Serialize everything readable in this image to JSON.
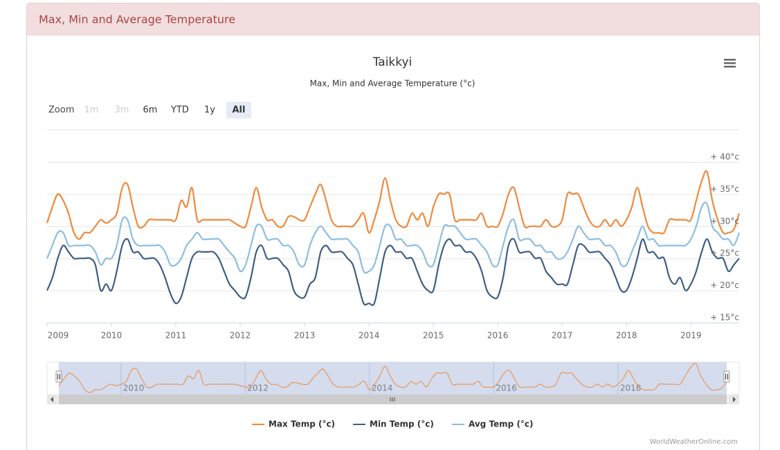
{
  "header": {
    "title": "Max, Min and Average Temperature"
  },
  "chart_data": {
    "type": "line",
    "title": "Taikkyi",
    "subtitle": "Max, Min and Average Temperature (°c)",
    "credits": "WorldWeatherOnline.com",
    "zoom": {
      "label": "Zoom",
      "buttons": [
        "1m",
        "3m",
        "6m",
        "YTD",
        "1y",
        "All"
      ],
      "disabled": [
        true,
        true,
        false,
        false,
        false,
        false
      ],
      "selected": 5
    },
    "xlim": [
      2009,
      2019.75
    ],
    "xticks": [
      2009,
      2010,
      2011,
      2012,
      2013,
      2014,
      2015,
      2016,
      2017,
      2018,
      2019
    ],
    "navigator_xticks": [
      2010,
      2012,
      2014,
      2016,
      2018
    ],
    "ylim": [
      15,
      40
    ],
    "yticks": [
      {
        "value": 15,
        "label": "+ 15°c"
      },
      {
        "value": 20,
        "label": "+ 20°c"
      },
      {
        "value": 25,
        "label": "+ 25°c"
      },
      {
        "value": 30,
        "label": "+ 30°c"
      },
      {
        "value": 35,
        "label": "+ 35°c"
      },
      {
        "value": 40,
        "label": "+ 40°c"
      }
    ],
    "grid": true,
    "legend": "bottom",
    "x": [
      2009,
      2009.083,
      2009.167,
      2009.25,
      2009.333,
      2009.417,
      2009.5,
      2009.583,
      2009.667,
      2009.75,
      2009.833,
      2009.917,
      2010,
      2010.083,
      2010.167,
      2010.25,
      2010.333,
      2010.417,
      2010.5,
      2010.583,
      2010.667,
      2010.75,
      2010.833,
      2010.917,
      2011,
      2011.083,
      2011.167,
      2011.25,
      2011.333,
      2011.417,
      2011.5,
      2011.583,
      2011.667,
      2011.75,
      2011.833,
      2011.917,
      2012,
      2012.083,
      2012.167,
      2012.25,
      2012.333,
      2012.417,
      2012.5,
      2012.583,
      2012.667,
      2012.75,
      2012.833,
      2012.917,
      2013,
      2013.083,
      2013.167,
      2013.25,
      2013.333,
      2013.417,
      2013.5,
      2013.583,
      2013.667,
      2013.75,
      2013.833,
      2013.917,
      2014,
      2014.083,
      2014.167,
      2014.25,
      2014.333,
      2014.417,
      2014.5,
      2014.583,
      2014.667,
      2014.75,
      2014.833,
      2014.917,
      2015,
      2015.083,
      2015.167,
      2015.25,
      2015.333,
      2015.417,
      2015.5,
      2015.583,
      2015.667,
      2015.75,
      2015.833,
      2015.917,
      2016,
      2016.083,
      2016.167,
      2016.25,
      2016.333,
      2016.417,
      2016.5,
      2016.583,
      2016.667,
      2016.75,
      2016.833,
      2016.917,
      2017,
      2017.083,
      2017.167,
      2017.25,
      2017.333,
      2017.417,
      2017.5,
      2017.583,
      2017.667,
      2017.75,
      2017.833,
      2017.917,
      2018,
      2018.083,
      2018.167,
      2018.25,
      2018.333,
      2018.417,
      2018.5,
      2018.583,
      2018.667,
      2018.75,
      2018.833,
      2018.917,
      2019,
      2019.083,
      2019.167,
      2019.25,
      2019.333,
      2019.417,
      2019.5,
      2019.583,
      2019.667,
      2019.75
    ],
    "series": [
      {
        "name": "Max Temp (°c)",
        "color": "#f0883a",
        "navigator": true,
        "values": [
          30.5,
          33,
          35,
          34,
          32,
          29,
          28,
          29,
          29,
          30,
          31,
          30.5,
          31,
          32,
          36,
          36.5,
          33,
          30,
          30,
          31,
          31,
          31,
          31,
          31,
          31,
          34,
          33,
          36,
          31,
          31,
          31,
          31,
          31,
          31,
          31,
          30.5,
          30,
          30,
          33,
          36,
          33,
          31,
          31,
          30,
          30,
          31.5,
          31.5,
          31,
          31,
          33,
          35,
          36.5,
          34,
          31,
          30,
          30,
          30,
          30,
          31,
          32,
          29,
          31,
          34,
          37.5,
          34,
          31,
          30,
          30,
          32,
          31,
          32,
          30,
          33,
          35,
          35,
          35,
          31,
          31,
          31,
          31,
          31,
          32,
          30,
          30,
          30,
          32,
          35,
          36,
          33,
          30,
          30,
          30,
          30,
          31,
          30,
          30,
          31,
          35,
          35,
          35,
          33,
          31,
          30,
          30,
          31,
          30,
          31,
          30,
          31,
          33,
          36,
          33,
          30,
          29,
          29,
          29,
          31,
          31,
          31,
          31,
          31,
          34,
          37,
          38.5,
          34,
          31,
          29,
          29,
          29.5,
          32
        ]
      },
      {
        "name": "Min Temp (°c)",
        "color": "#3d5d84",
        "values": [
          20,
          22,
          25,
          27,
          26,
          25,
          25,
          25,
          25,
          24,
          20,
          21,
          20,
          23,
          27,
          28,
          26,
          26,
          25,
          25,
          25,
          24,
          22,
          19.5,
          18,
          19,
          22,
          25,
          26,
          26,
          26,
          26,
          25,
          23,
          21,
          20,
          19,
          19,
          22,
          26,
          27,
          25,
          25,
          25,
          24,
          23,
          20,
          19,
          19,
          21,
          22,
          26,
          27,
          26,
          26,
          26,
          25,
          24,
          21,
          18,
          18,
          18,
          22,
          26,
          27,
          26,
          26,
          25,
          25,
          23,
          21,
          20,
          20,
          24,
          27,
          28,
          27,
          27,
          26,
          26,
          25,
          23,
          20,
          19,
          19,
          22,
          27,
          28,
          26,
          26,
          26,
          25,
          25,
          23,
          22,
          21,
          21,
          21,
          24,
          27,
          27,
          26,
          26,
          26,
          25,
          24,
          22,
          20,
          20,
          22,
          25,
          28,
          26,
          26,
          25,
          25,
          22,
          21,
          22,
          20,
          21,
          23,
          26,
          28,
          26,
          25,
          25,
          23,
          24,
          25
        ]
      },
      {
        "name": "Avg Temp (°c)",
        "color": "#8cbde0",
        "values": [
          25,
          27,
          29,
          29,
          27,
          27,
          27,
          27,
          27,
          26,
          24,
          25,
          25,
          27,
          31,
          31,
          28,
          27,
          27,
          27,
          27,
          27,
          26,
          24,
          24,
          25,
          27,
          28,
          29,
          28,
          28,
          28,
          28,
          27,
          26,
          25,
          23,
          24,
          27,
          30,
          30,
          28,
          28,
          28,
          27,
          27,
          26,
          24,
          24,
          27,
          29,
          30,
          29,
          28,
          28,
          28,
          28,
          27,
          26,
          23,
          23,
          24,
          27,
          30,
          30,
          28,
          28,
          27,
          27,
          27,
          26,
          24,
          24,
          27,
          30,
          30,
          30,
          29,
          28,
          28,
          28,
          27,
          26,
          24,
          24,
          27,
          30,
          31,
          28,
          28,
          28,
          27,
          27,
          26,
          26,
          25,
          25,
          26,
          28,
          30,
          29,
          28,
          28,
          28,
          27,
          27,
          26,
          24,
          24,
          26,
          28,
          30,
          28,
          28,
          27,
          27,
          27,
          27,
          27,
          27,
          28,
          30,
          33,
          33.5,
          30,
          29,
          28,
          28,
          27,
          29
        ]
      }
    ]
  }
}
